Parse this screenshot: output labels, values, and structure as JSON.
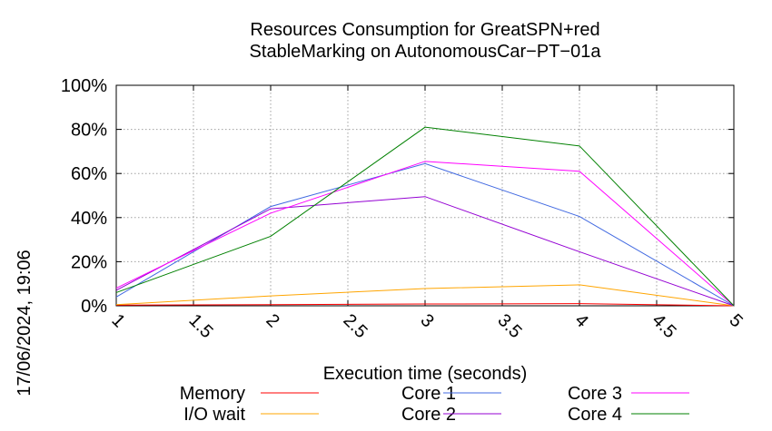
{
  "chart_data": {
    "type": "line",
    "title_lines": [
      "Resources Consumption for GreatSPN+red",
      "StableMarking on AutonomousCar−PT−01a"
    ],
    "xlabel": "Execution time (seconds)",
    "timestamp": "17/06/2024, 19:06",
    "xlim": [
      1,
      5
    ],
    "ylim": [
      0,
      100
    ],
    "x_ticks": [
      "1",
      "1.5",
      "2",
      "2.5",
      "3",
      "3.5",
      "4",
      "4.5",
      "5"
    ],
    "x_tick_values": [
      1,
      1.5,
      2,
      2.5,
      3,
      3.5,
      4,
      4.5,
      5
    ],
    "y_ticks": [
      "0%",
      "20%",
      "40%",
      "60%",
      "80%",
      "100%"
    ],
    "y_tick_values": [
      0,
      20,
      40,
      60,
      80,
      100
    ],
    "grid": true,
    "legend_position": "bottom",
    "x": [
      1,
      2,
      3,
      4,
      5
    ],
    "series": [
      {
        "name": "Memory",
        "color": "#ff0000",
        "values": [
          0.3,
          0.5,
          0.8,
          1.0,
          0
        ]
      },
      {
        "name": "I/O wait",
        "color": "#ffa500",
        "values": [
          0.5,
          4.5,
          7.8,
          9.5,
          0
        ]
      },
      {
        "name": "Core 1",
        "color": "#4169e1",
        "values": [
          4,
          45,
          64.5,
          40.5,
          0
        ]
      },
      {
        "name": "Core 2",
        "color": "#9400d3",
        "values": [
          7,
          44,
          49.5,
          24.5,
          0
        ]
      },
      {
        "name": "Core 3",
        "color": "#ff00ff",
        "values": [
          8,
          42,
          65.5,
          61,
          0
        ]
      },
      {
        "name": "Core 4",
        "color": "#008000",
        "values": [
          6,
          31.5,
          81,
          72.5,
          0
        ]
      }
    ]
  }
}
